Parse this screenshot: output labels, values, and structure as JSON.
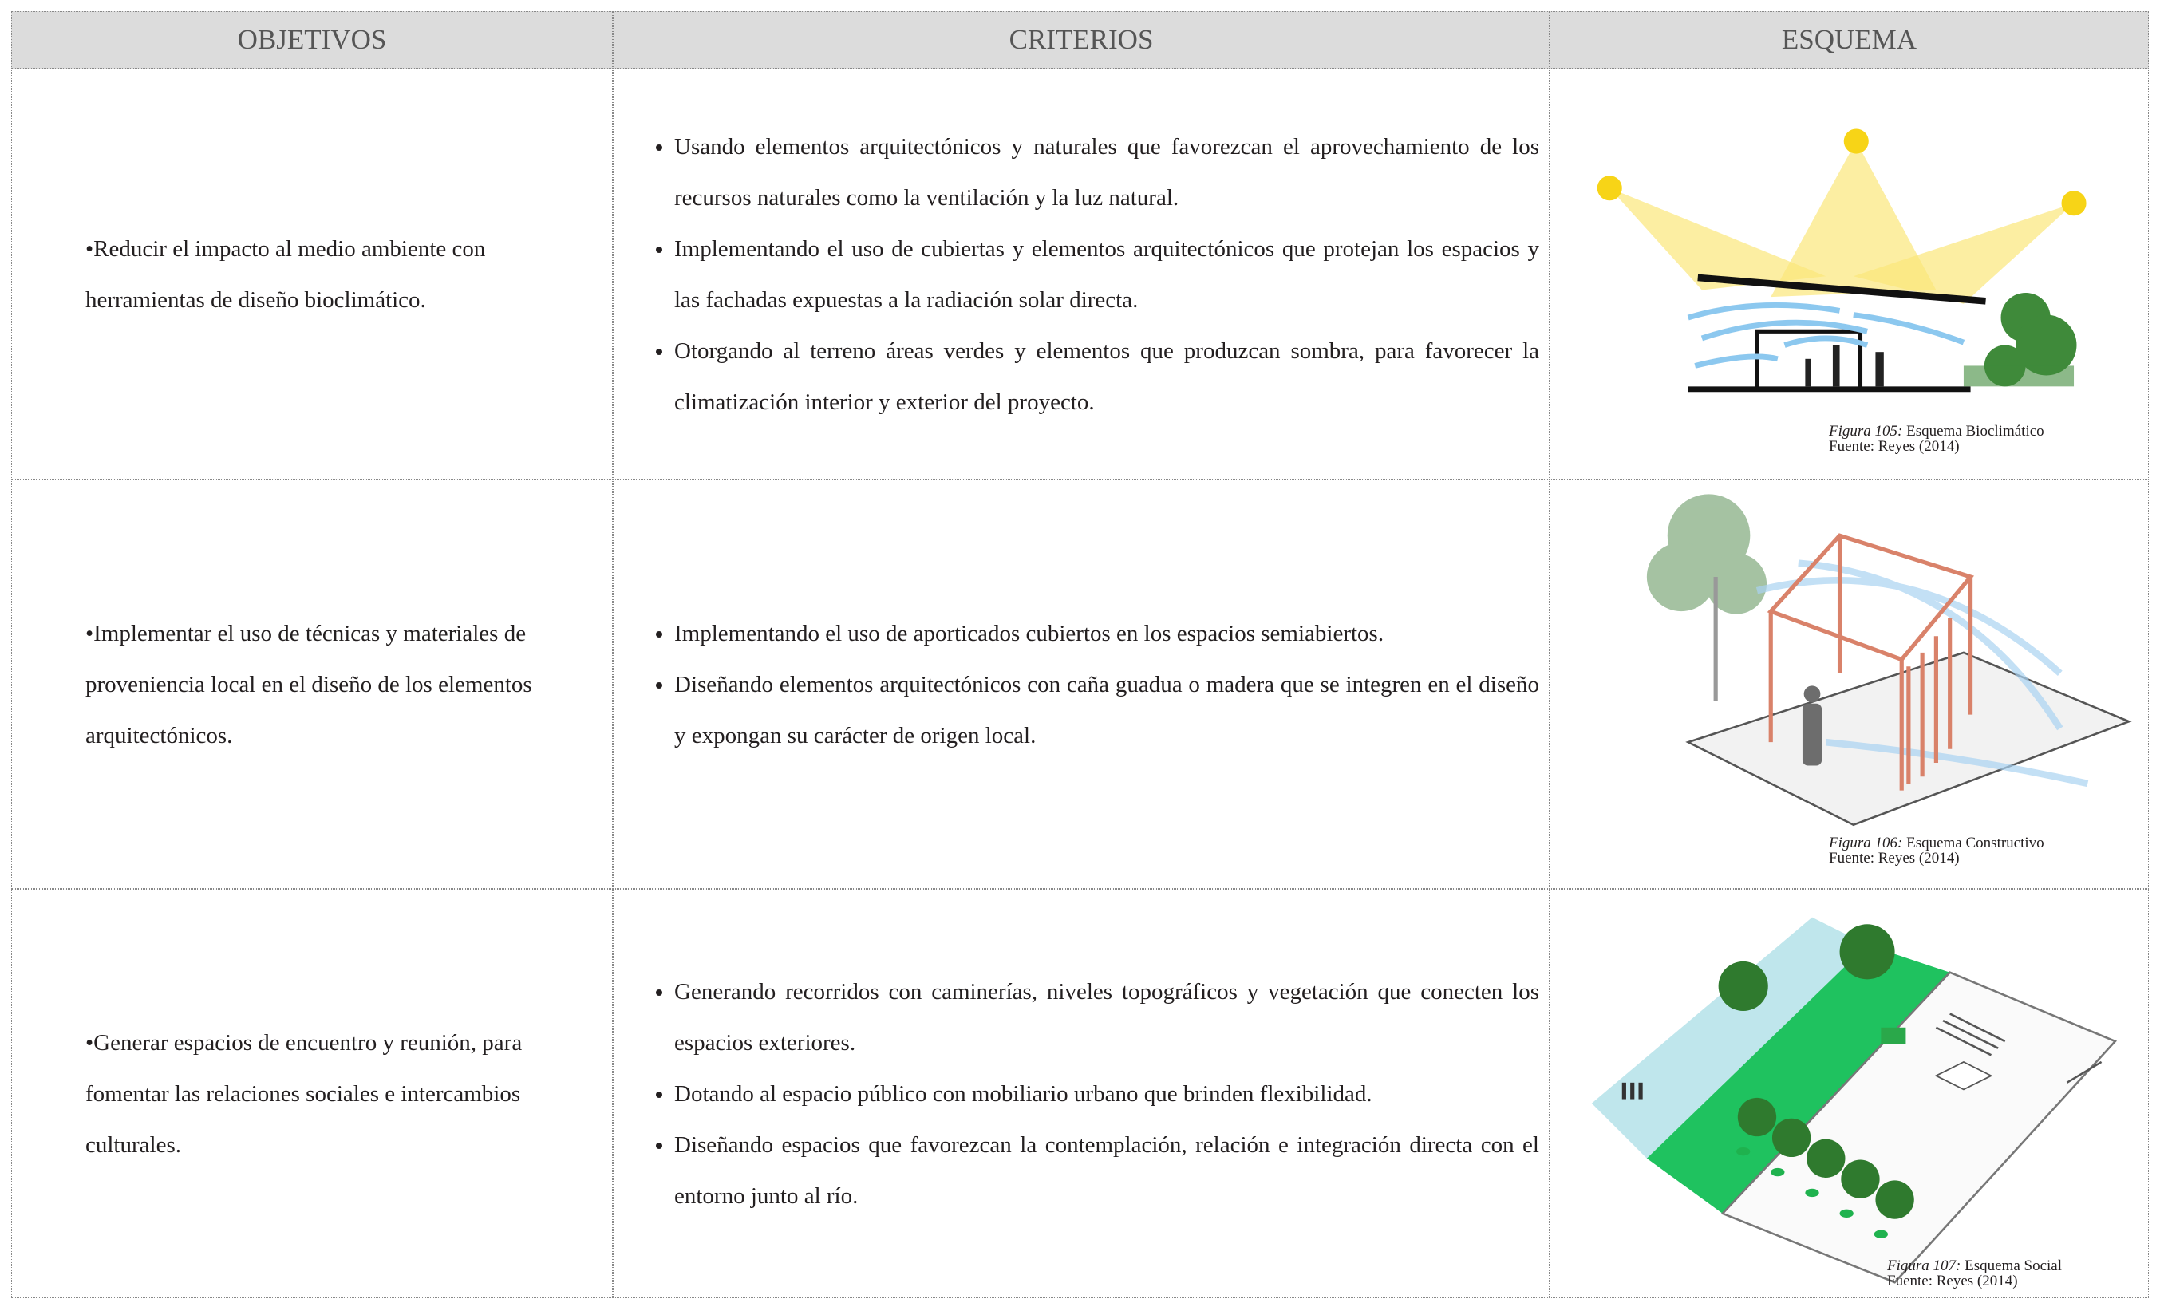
{
  "header": {
    "columns": [
      "OBJETIVOS",
      "CRITERIOS",
      "ESQUEMA"
    ]
  },
  "rows": [
    {
      "objective": "•Reducir el impacto al medio ambiente con herramientas de diseño bioclimático.",
      "criteria": [
        "Usando elementos arquitectónicos y naturales que favorezcan el aprovechamiento de los recursos naturales como la ventilación y la luz natural.",
        "Implementando el uso de cubiertas y elementos arquitectónicos que protejan los espacios y las fachadas expuestas a la radiación solar directa.",
        "Otorgando al terreno áreas verdes y elementos que produzcan sombra, para favorecer la climatización interior y exterior del proyecto."
      ],
      "figure": {
        "label": "Figura  105:",
        "caption": "Esquema Bioclimático",
        "source": "Fuente: Reyes (2014)"
      }
    },
    {
      "objective": "•Implementar el uso de  técnicas y materiales de proveniencia local en el diseño de los elementos arquitectónicos.",
      "criteria": [
        "Implementando el uso de aporticados cubiertos en los espacios semiabiertos.",
        "Diseñando elementos arquitectónicos con caña guadua o madera que se integren en el diseño y expongan su carácter de origen local."
      ],
      "figure": {
        "label": "Figura  106:",
        "caption": "Esquema Constructivo",
        "source": "Fuente: Reyes (2014)"
      }
    },
    {
      "objective": "•Generar espacios de encuentro y reunión, para fomentar las relaciones sociales e intercambios culturales.",
      "criteria": [
        "Generando recorridos con caminerías, niveles topográficos y vegetación que conecten los espacios exteriores.",
        "Dotando al espacio público con mobiliario urbano que  brinden flexibilidad.",
        "Diseñando espacios que favorezcan la contemplación, relación e integración directa con el entorno junto al río."
      ],
      "figure": {
        "label": "Figura  107:",
        "caption": "Esquema Social",
        "source": "Fuente: Reyes (2014)"
      }
    }
  ]
}
